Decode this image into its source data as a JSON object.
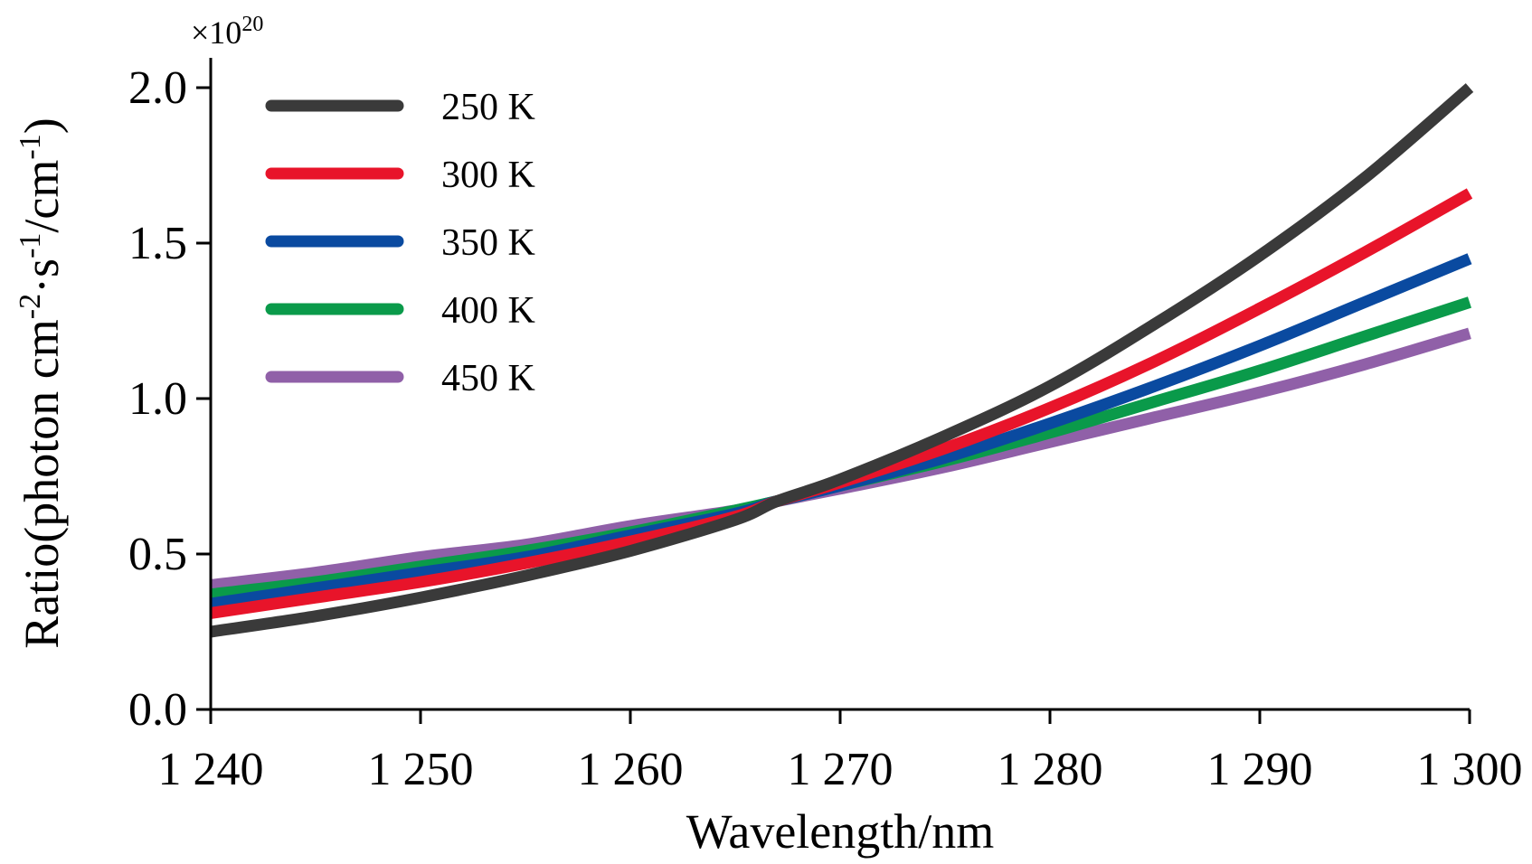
{
  "chart_data": {
    "type": "line",
    "xlabel": "Wavelength/nm",
    "ylabel": "Ratio(photon cm-2·s-1/cm-1)",
    "ylabel_parts": {
      "a": "Ratio(photon cm",
      "a_sup": "-2",
      "b": "·s",
      "b_sup": "-1",
      "c": "/cm",
      "c_sup": "-1",
      "d": ")"
    },
    "y_multiplier": {
      "base": "×10",
      "exp": "20"
    },
    "xlim": [
      1240,
      1300
    ],
    "ylim": [
      0,
      2.0
    ],
    "x_ticks": [
      1240,
      1250,
      1260,
      1270,
      1280,
      1290,
      1300
    ],
    "x_tick_labels": [
      "1 240",
      "1 250",
      "1 260",
      "1 270",
      "1 280",
      "1 290",
      "1 300"
    ],
    "y_ticks": [
      0.0,
      0.5,
      1.0,
      1.5,
      2.0
    ],
    "y_tick_labels": [
      "0.0",
      "0.5",
      "1.0",
      "1.5",
      "2.0"
    ],
    "legend_position": "top-left",
    "x": [
      1240,
      1245,
      1250,
      1255,
      1260,
      1265,
      1267,
      1270,
      1275,
      1280,
      1285,
      1290,
      1295,
      1300
    ],
    "series": [
      {
        "name": "250 K",
        "color": "#3a3a3a",
        "values": [
          0.25,
          0.3,
          0.36,
          0.43,
          0.51,
          0.61,
          0.67,
          0.74,
          0.88,
          1.04,
          1.24,
          1.46,
          1.71,
          2.0
        ]
      },
      {
        "name": "300 K",
        "color": "#e8142a",
        "values": [
          0.31,
          0.36,
          0.41,
          0.47,
          0.54,
          0.62,
          0.67,
          0.73,
          0.84,
          0.97,
          1.12,
          1.29,
          1.47,
          1.66
        ]
      },
      {
        "name": "350 K",
        "color": "#0a4aa0",
        "values": [
          0.34,
          0.39,
          0.44,
          0.49,
          0.56,
          0.63,
          0.67,
          0.72,
          0.81,
          0.92,
          1.04,
          1.17,
          1.31,
          1.45
        ]
      },
      {
        "name": "400 K",
        "color": "#0a9a4a",
        "values": [
          0.37,
          0.41,
          0.46,
          0.51,
          0.57,
          0.64,
          0.67,
          0.72,
          0.8,
          0.89,
          0.99,
          1.09,
          1.2,
          1.31
        ]
      },
      {
        "name": "450 K",
        "color": "#9060a8",
        "values": [
          0.4,
          0.44,
          0.49,
          0.53,
          0.59,
          0.64,
          0.67,
          0.71,
          0.78,
          0.86,
          0.94,
          1.02,
          1.11,
          1.21
        ]
      }
    ]
  }
}
